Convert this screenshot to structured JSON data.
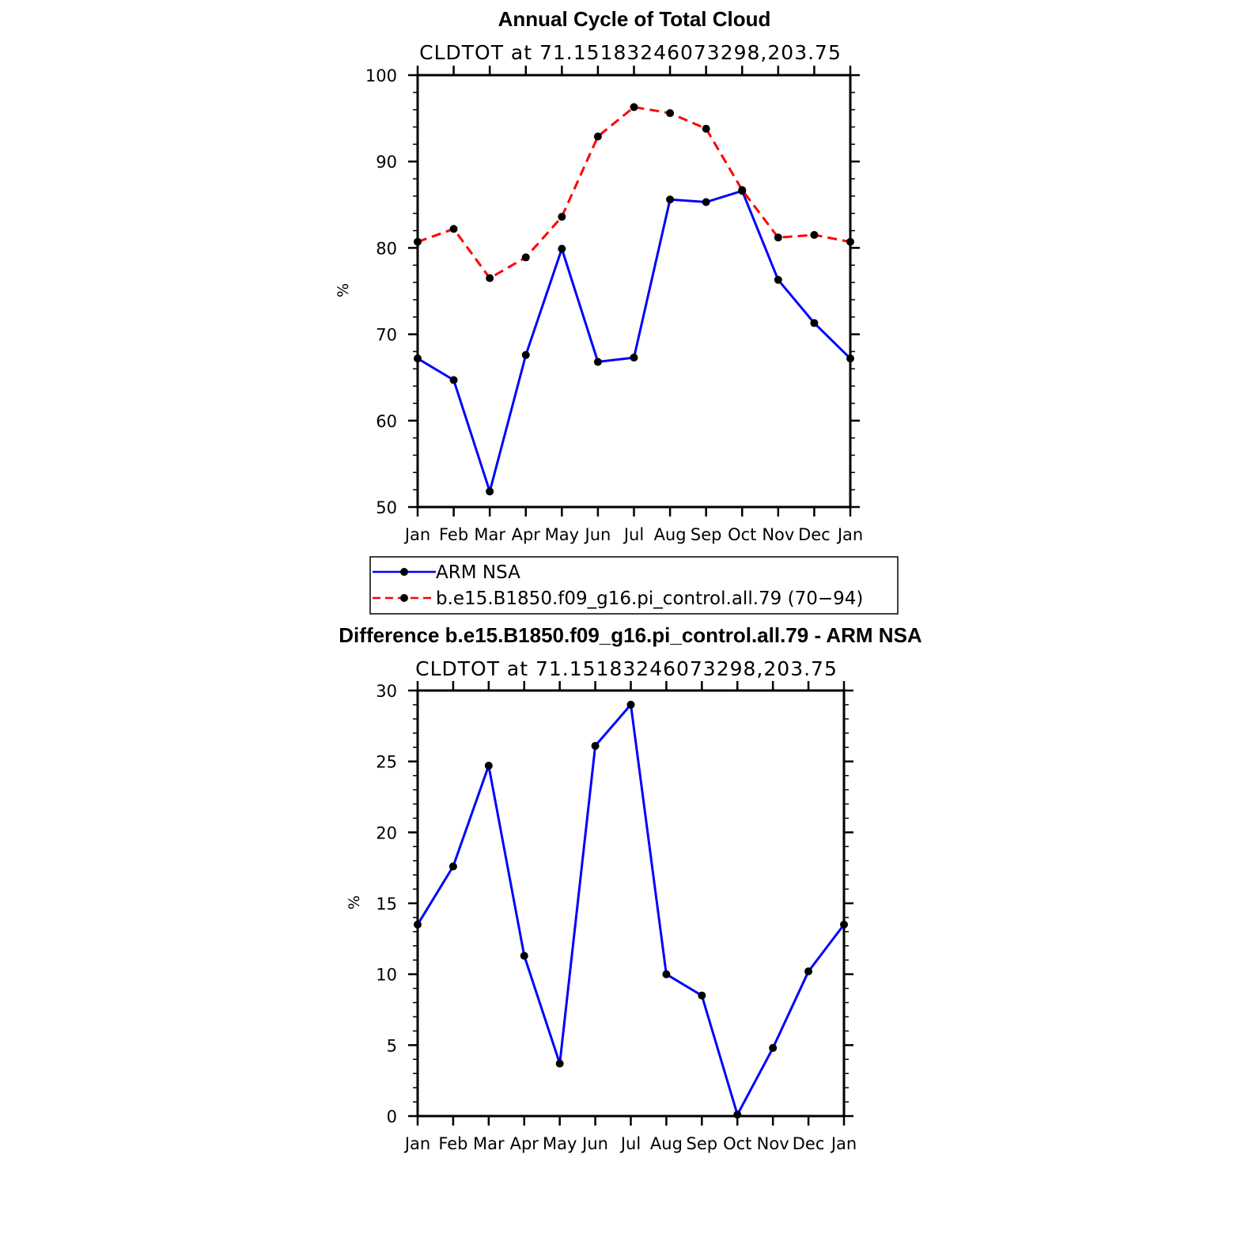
{
  "chart_data": [
    {
      "type": "line",
      "title": "Annual Cycle of Total Cloud",
      "subtitle": "CLDTOT at 71.15183246073298,203.75",
      "xlabel": "",
      "ylabel": "%",
      "categories": [
        "Jan",
        "Feb",
        "Mar",
        "Apr",
        "May",
        "Jun",
        "Jul",
        "Aug",
        "Sep",
        "Oct",
        "Nov",
        "Dec",
        "Jan"
      ],
      "ylim": [
        50,
        100
      ],
      "yticks": [
        50,
        60,
        70,
        80,
        90,
        100
      ],
      "series": [
        {
          "name": "ARM NSA",
          "color": "#0000ff",
          "dash": "solid",
          "values": [
            67.2,
            64.7,
            51.8,
            67.6,
            79.9,
            66.8,
            67.3,
            85.6,
            85.3,
            86.6,
            76.3,
            71.3,
            67.2
          ]
        },
        {
          "name": "b.e15.B1850.f09_g16.pi_control.all.79 (70−94)",
          "color": "#ff0000",
          "dash": "dashed",
          "values": [
            80.7,
            82.2,
            76.5,
            78.9,
            83.6,
            92.9,
            96.3,
            95.6,
            93.8,
            86.7,
            81.2,
            81.5,
            80.7
          ]
        }
      ],
      "legend": {
        "position": "below",
        "entries": [
          "ARM NSA",
          "b.e15.B1850.f09_g16.pi_control.all.79 (70−94)"
        ]
      }
    },
    {
      "type": "line",
      "title": "Difference b.e15.B1850.f09_g16.pi_control.all.79 - ARM NSA",
      "subtitle": "CLDTOT at 71.15183246073298,203.75",
      "xlabel": "",
      "ylabel": "%",
      "categories": [
        "Jan",
        "Feb",
        "Mar",
        "Apr",
        "May",
        "Jun",
        "Jul",
        "Aug",
        "Sep",
        "Oct",
        "Nov",
        "Dec",
        "Jan"
      ],
      "ylim": [
        0,
        30
      ],
      "yticks": [
        0,
        5,
        10,
        15,
        20,
        25,
        30
      ],
      "series": [
        {
          "name": "Difference",
          "color": "#0000ff",
          "dash": "solid",
          "values": [
            13.5,
            17.6,
            24.7,
            11.3,
            3.7,
            26.1,
            29.0,
            10.0,
            8.5,
            0.1,
            4.8,
            10.2,
            13.5
          ]
        }
      ]
    }
  ]
}
